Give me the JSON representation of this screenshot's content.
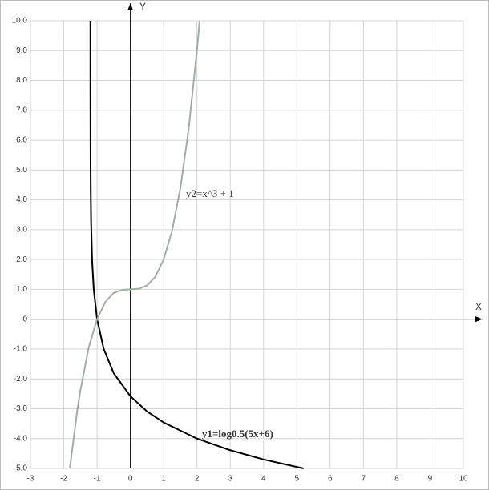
{
  "chart_data": {
    "type": "line",
    "x_label": "X",
    "y_label": "Y",
    "xlim": [
      -3,
      10
    ],
    "ylim": [
      -5,
      10
    ],
    "xticks": [
      -3,
      -2,
      -1,
      0,
      1,
      2,
      3,
      4,
      5,
      6,
      7,
      8,
      9,
      10
    ],
    "yticks": [
      {
        "value": -5,
        "label": "-5.0"
      },
      {
        "value": -4,
        "label": "-4.0"
      },
      {
        "value": -3,
        "label": "-3.0"
      },
      {
        "value": -2,
        "label": "-2.0"
      },
      {
        "value": -1,
        "label": "-1.0"
      },
      0,
      {
        "value": 1,
        "label": "1.0"
      },
      {
        "value": 2,
        "label": "2.0"
      },
      {
        "value": 3,
        "label": "3.0"
      },
      {
        "value": 4,
        "label": "4.0"
      },
      {
        "value": 5,
        "label": "5.0"
      },
      {
        "value": 6,
        "label": "6.0"
      },
      {
        "value": 7,
        "label": "7.0"
      },
      {
        "value": 8,
        "label": "8.0"
      },
      {
        "value": 9,
        "label": "9.0"
      },
      {
        "value": 10,
        "label": "10.0"
      }
    ],
    "grid": true,
    "series": [
      {
        "name": "y1=log0.5(5x+6)",
        "color": "#000000",
        "x": [
          -1.1998,
          -1.199,
          -1.195,
          -1.19,
          -1.18,
          -1.15,
          -1.1,
          -1,
          -0.8,
          -0.5,
          0,
          0.5,
          1,
          2,
          3,
          4,
          5.2
        ],
        "values": [
          10,
          7.64,
          5.32,
          4.32,
          3.32,
          2,
          1,
          0,
          -1,
          -1.81,
          -2.58,
          -3.09,
          -3.46,
          -4,
          -4.39,
          -4.7,
          -5
        ]
      },
      {
        "name": "y2=x^3 + 1",
        "color": "#a3ada3",
        "x": [
          -1.817,
          -1.6,
          -1.5,
          -1.25,
          -1,
          -0.75,
          -0.5,
          -0.25,
          0,
          0.25,
          0.5,
          0.75,
          1,
          1.25,
          1.5,
          1.75,
          2,
          2.08
        ],
        "values": [
          -5,
          -3.1,
          -2.38,
          -0.95,
          0,
          0.58,
          0.88,
          0.98,
          1,
          1.02,
          1.13,
          1.42,
          2,
          2.95,
          4.38,
          6.36,
          9,
          10
        ]
      }
    ]
  }
}
